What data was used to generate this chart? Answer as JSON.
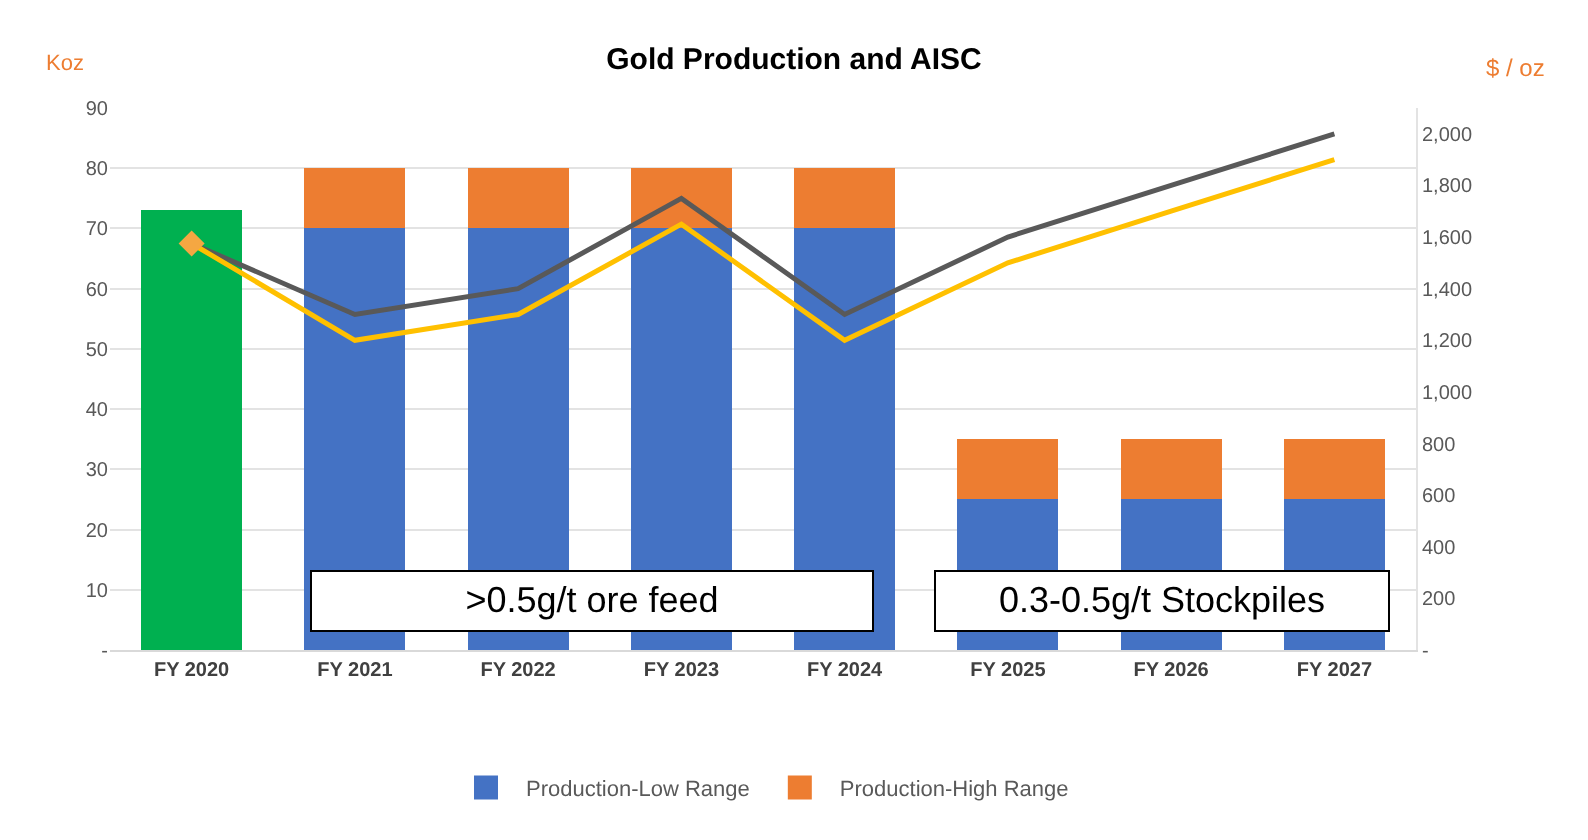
{
  "chart_data": {
    "type": "bar",
    "title": "Gold Production and AISC",
    "ylabel": "Koz",
    "y2label": "$ / oz",
    "categories": [
      "FY 2020",
      "FY 2021",
      "FY 2022",
      "FY 2023",
      "FY 2024",
      "FY 2025",
      "FY 2026",
      "FY 2027"
    ],
    "stacked": true,
    "series": [
      {
        "color": "#00b050",
        "values": [
          73,
          null,
          null,
          null,
          null,
          null,
          null,
          null
        ]
      },
      {
        "name": "Production-Low Range",
        "color": "#4472c4",
        "values": [
          null,
          70,
          70,
          70,
          70,
          25,
          25,
          25
        ]
      },
      {
        "name": "Production-High Range",
        "color": "#ed7d31",
        "values": [
          null,
          10,
          10,
          10,
          10,
          10,
          10,
          10
        ]
      },
      {
        "type": "line",
        "axis": "y2",
        "color": "#595959",
        "values": [
          1575,
          1300,
          1400,
          1750,
          1300,
          1600,
          1800,
          2000
        ]
      },
      {
        "type": "line",
        "axis": "y2",
        "color": "#ffc000",
        "values": [
          1575,
          1200,
          1300,
          1650,
          1200,
          1500,
          1700,
          1900
        ]
      },
      {
        "type": "scatter",
        "axis": "y2",
        "marker": "diamond",
        "color": "#f5a742",
        "values": [
          1575,
          null,
          null,
          null,
          null,
          null,
          null,
          null
        ]
      }
    ],
    "ylim": [
      0,
      90
    ],
    "yticks": [
      {
        "value": 0,
        "label": "-"
      },
      10,
      20,
      30,
      40,
      50,
      60,
      70,
      80,
      90
    ],
    "y2lim": [
      0,
      2100
    ],
    "y2ticks": [
      {
        "value": 0,
        "label": "-"
      },
      200,
      400,
      600,
      800,
      {
        "value": 1000,
        "label": "1,000"
      },
      {
        "value": 1200,
        "label": "1,200"
      },
      {
        "value": 1400,
        "label": "1,400"
      },
      {
        "value": 1600,
        "label": "1,600"
      },
      {
        "value": 1800,
        "label": "1,800"
      },
      {
        "value": 2000,
        "label": "2,000"
      }
    ],
    "grid": "y",
    "legend": "bottom",
    "annotations": [
      ">0.5g/t ore feed",
      "0.3-0.5g/t Stockpiles"
    ]
  }
}
